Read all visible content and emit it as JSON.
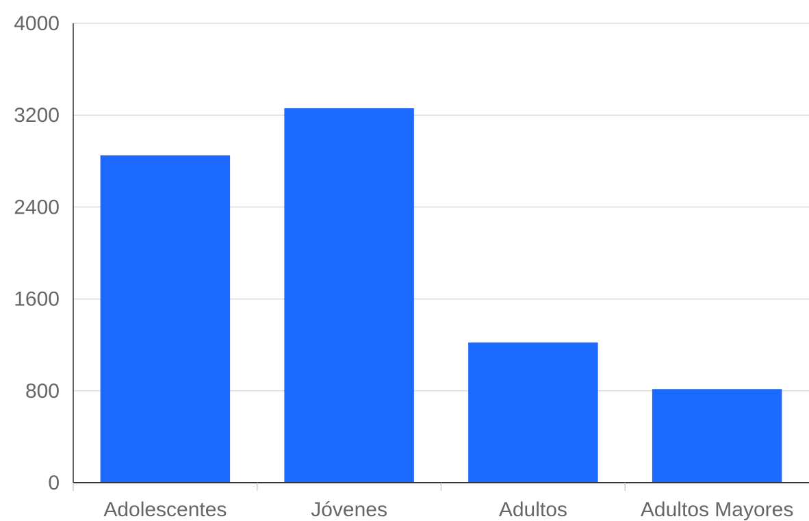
{
  "chart_data": {
    "type": "bar",
    "categories": [
      "Adolescentes",
      "Jóvenes",
      "Adultos",
      "Adultos Mayores"
    ],
    "series": [
      {
        "values": [
          2850,
          3260,
          1220,
          815
        ]
      }
    ],
    "yticks": [
      "0",
      "800",
      "1600",
      "2400",
      "3200",
      "4000"
    ],
    "ylim": [
      0,
      4000
    ],
    "grid": true,
    "title": "",
    "xlabel": "",
    "ylabel": "",
    "colors": {
      "bar": "#1c69ff",
      "grid": "#dddddd",
      "axis": "#333333",
      "tick_text": "#666666"
    }
  }
}
